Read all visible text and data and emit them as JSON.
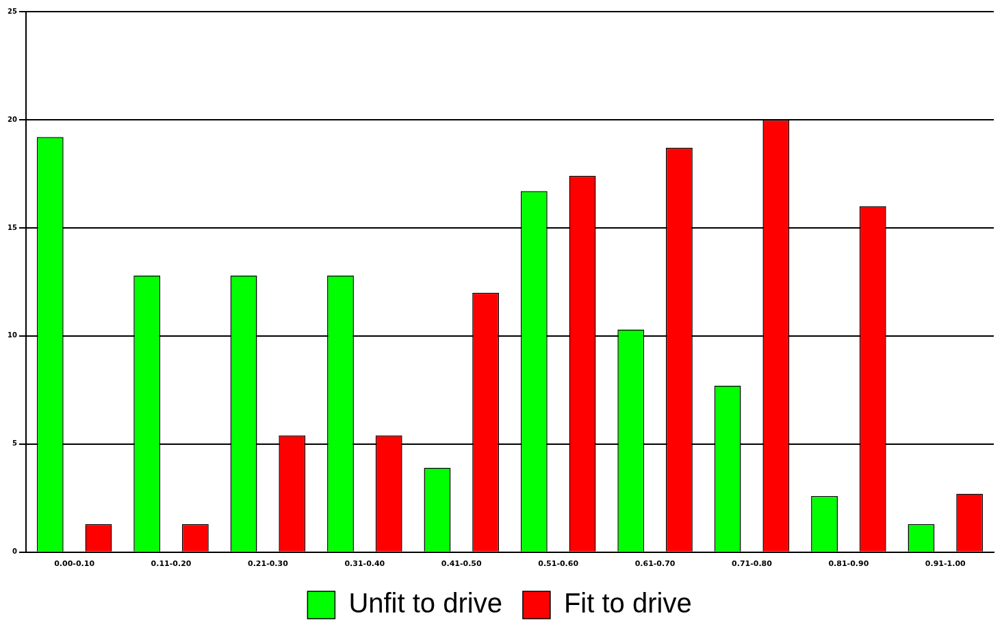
{
  "chart_data": {
    "type": "bar",
    "categories": [
      "0.00-0.10",
      "0.11-0.20",
      "0.21-0.30",
      "0.31-0.40",
      "0.41-0.50",
      "0.51-0.60",
      "0.61-0.70",
      "0.71-0.80",
      "0.81-0.90",
      "0.91-1.00"
    ],
    "series": [
      {
        "name": "Unfit to drive",
        "color": "#00ff00",
        "values": [
          19.2,
          12.8,
          12.8,
          12.8,
          3.9,
          16.7,
          10.3,
          7.7,
          2.6,
          1.3
        ]
      },
      {
        "name": "Fit to drive",
        "color": "#ff0000",
        "values": [
          1.3,
          1.3,
          5.4,
          5.4,
          12.0,
          17.4,
          18.7,
          20.0,
          16.0,
          2.7
        ]
      }
    ],
    "ylim": [
      0,
      25
    ],
    "yticks": [
      0,
      5,
      10,
      15,
      20,
      25
    ],
    "grid": "y",
    "legend": "bottom"
  }
}
